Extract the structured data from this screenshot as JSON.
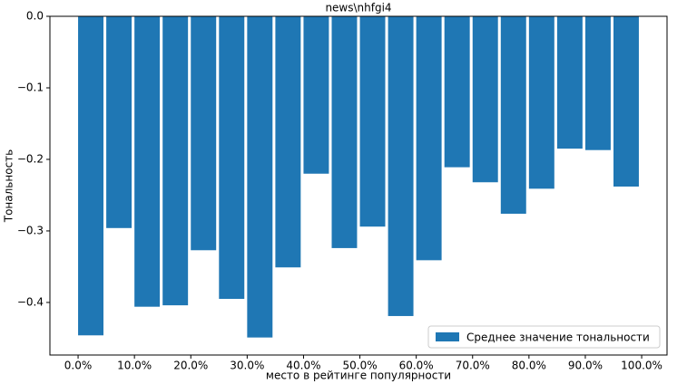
{
  "chart_data": {
    "type": "bar",
    "title": "news\\nhfgi4",
    "xlabel": "место в рейтинге популярности",
    "ylabel": "Тональность",
    "x": [
      0,
      5,
      10,
      15,
      20,
      25,
      30,
      35,
      40,
      45,
      50,
      55,
      60,
      65,
      70,
      75,
      80,
      85,
      90,
      95
    ],
    "series": [
      {
        "name": "Среднее значение тональности",
        "color": "#1f77b4",
        "values": [
          -0.446,
          -0.296,
          -0.406,
          -0.404,
          -0.327,
          -0.395,
          -0.449,
          -0.351,
          -0.22,
          -0.324,
          -0.294,
          -0.419,
          -0.341,
          -0.211,
          -0.232,
          -0.276,
          -0.241,
          -0.185,
          -0.187,
          -0.238
        ]
      }
    ],
    "bar_width": 4.5,
    "align": "edge",
    "xlim": [
      -5,
      104.5
    ],
    "ylim": [
      -0.4735,
      0
    ],
    "xticks": [
      {
        "value": 0,
        "label": "0.0%"
      },
      {
        "value": 10,
        "label": "10.0%"
      },
      {
        "value": 20,
        "label": "20.0%"
      },
      {
        "value": 30,
        "label": "30.0%"
      },
      {
        "value": 40,
        "label": "40.0%"
      },
      {
        "value": 50,
        "label": "50.0%"
      },
      {
        "value": 60,
        "label": "60.0%"
      },
      {
        "value": 70,
        "label": "70.0%"
      },
      {
        "value": 80,
        "label": "80.0%"
      },
      {
        "value": 90,
        "label": "90.0%"
      },
      {
        "value": 100,
        "label": "100.0%"
      }
    ],
    "yticks": [
      {
        "value": 0,
        "label": "0.0"
      },
      {
        "value": -0.1,
        "label": "−0.1"
      },
      {
        "value": -0.2,
        "label": "−0.2"
      },
      {
        "value": -0.3,
        "label": "−0.3"
      },
      {
        "value": -0.4,
        "label": "−0.4"
      }
    ],
    "legend": "lower right",
    "grid": false
  }
}
